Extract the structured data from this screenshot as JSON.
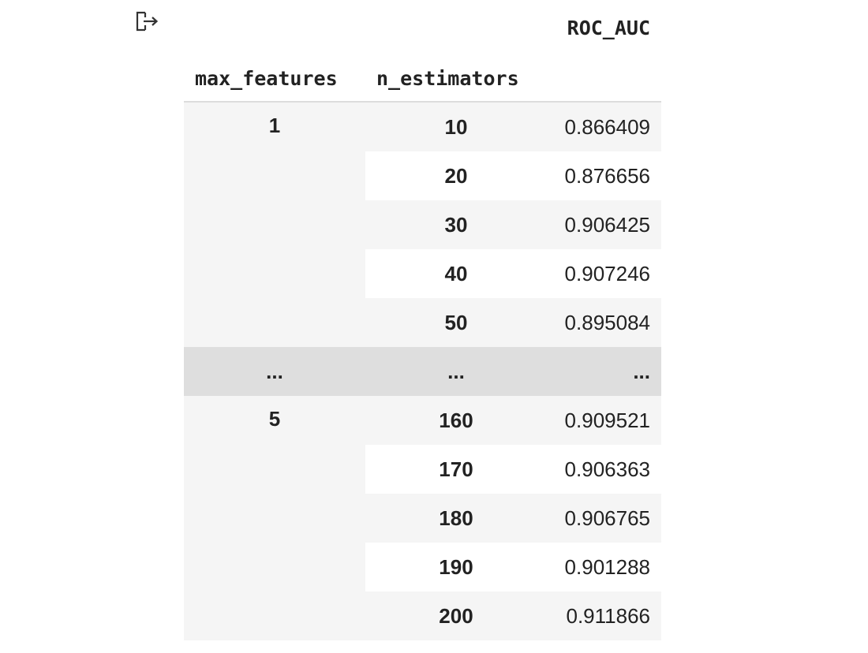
{
  "table": {
    "header": {
      "value_column": "ROC_AUC",
      "index_names": [
        "max_features",
        "n_estimators"
      ]
    },
    "groups": [
      {
        "max_features": "1",
        "rows": [
          {
            "n_estimators": "10",
            "roc_auc": "0.866409"
          },
          {
            "n_estimators": "20",
            "roc_auc": "0.876656"
          },
          {
            "n_estimators": "30",
            "roc_auc": "0.906425"
          },
          {
            "n_estimators": "40",
            "roc_auc": "0.907246"
          },
          {
            "n_estimators": "50",
            "roc_auc": "0.895084"
          }
        ]
      },
      {
        "max_features": "5",
        "rows": [
          {
            "n_estimators": "160",
            "roc_auc": "0.909521"
          },
          {
            "n_estimators": "170",
            "roc_auc": "0.906363"
          },
          {
            "n_estimators": "180",
            "roc_auc": "0.906765"
          },
          {
            "n_estimators": "190",
            "roc_auc": "0.901288"
          },
          {
            "n_estimators": "200",
            "roc_auc": "0.911866"
          }
        ]
      }
    ],
    "ellipsis": {
      "max_features": "...",
      "n_estimators": "...",
      "roc_auc": "..."
    }
  },
  "icons": {
    "output": "output-redirect-icon"
  },
  "colors": {
    "row_shaded": "#f5f5f5",
    "row_plain": "#ffffff",
    "ellipsis_row": "#dedede",
    "text": "#222222"
  }
}
